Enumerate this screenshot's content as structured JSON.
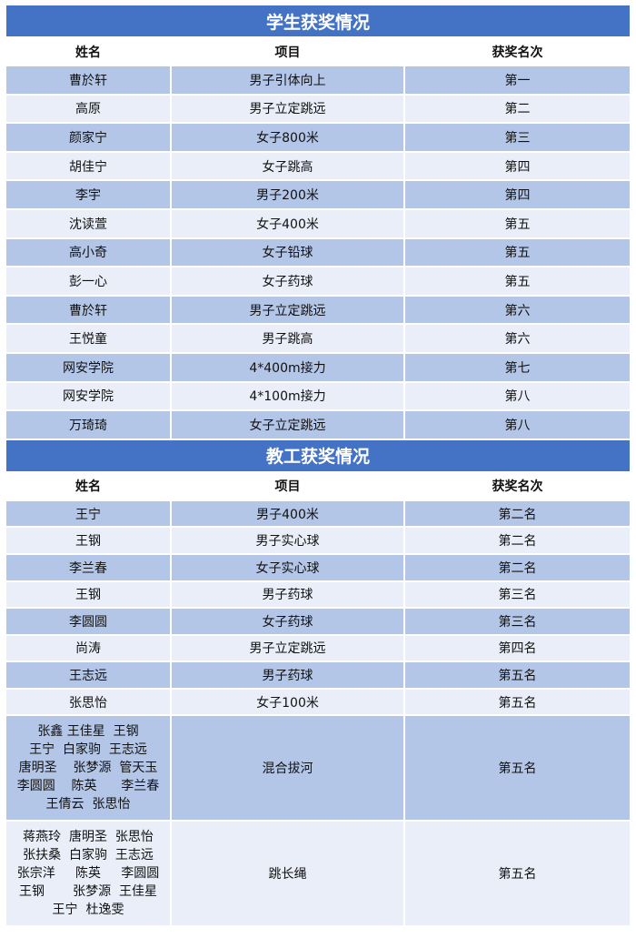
{
  "student": {
    "title": "学生获奖情况",
    "headers": [
      "姓名",
      "项目",
      "获奖名次"
    ],
    "rows": [
      [
        "曹於轩",
        "男子引体向上",
        "第一"
      ],
      [
        "高原",
        "男子立定跳远",
        "第二"
      ],
      [
        "颜家宁",
        "女子800米",
        "第三"
      ],
      [
        "胡佳宁",
        "女子跳高",
        "第四"
      ],
      [
        "李宇",
        "男子200米",
        "第四"
      ],
      [
        "沈读萱",
        "女子400米",
        "第五"
      ],
      [
        "高小奇",
        "女子铅球",
        "第五"
      ],
      [
        "彭一心",
        "女子药球",
        "第五"
      ],
      [
        "曹於轩",
        "男子立定跳远",
        "第六"
      ],
      [
        "王悦童",
        "男子跳高",
        "第六"
      ],
      [
        "网安学院",
        "4*400m接力",
        "第七"
      ],
      [
        "网安学院",
        "4*100m接力",
        "第八"
      ],
      [
        "万琦琦",
        "女子立定跳远",
        "第八"
      ]
    ]
  },
  "staff": {
    "title": "教工获奖情况",
    "headers": [
      "姓名",
      "项目",
      "获奖名次"
    ],
    "rows": [
      [
        "王宁",
        "男子400米",
        "第二名"
      ],
      [
        "王钢",
        "男子实心球",
        "第二名"
      ],
      [
        "李兰春",
        "女子实心球",
        "第二名"
      ],
      [
        "王钢",
        "男子药球",
        "第三名"
      ],
      [
        "李圆圆",
        "女子药球",
        "第三名"
      ],
      [
        "尚涛",
        "男子立定跳远",
        "第四名"
      ],
      [
        "王志远",
        "男子药球",
        "第五名"
      ],
      [
        "张思怡",
        "女子100米",
        "第五名"
      ],
      [
        "张鑫 王佳星  王钢\n王宁  白家驹  王志远\n唐明圣    张梦源  管天玉\n李圆圆    陈英      李兰春\n王倩云  张思怡",
        "混合拔河",
        "第五名"
      ],
      [
        "蒋燕玲  唐明圣  张思怡\n张扶桑  白家驹  王志远\n张宗洋     陈英     李圆圆\n王钢       张梦源  王佳星\n王宁  杜逸雯",
        "跳长绳",
        "第五名"
      ]
    ]
  }
}
